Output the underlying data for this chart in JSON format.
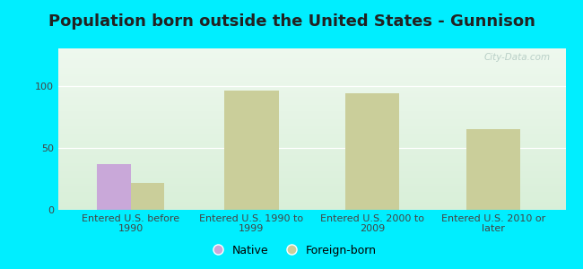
{
  "title": "Population born outside the United States - Gunnison",
  "background_outer": "#00eeff",
  "background_inner_top": "#eef8ee",
  "background_inner_bottom": "#d8efd8",
  "categories": [
    "Entered U.S. before\n1990",
    "Entered U.S. 1990 to\n1999",
    "Entered U.S. 2000 to\n2009",
    "Entered U.S. 2010 or\nlater"
  ],
  "native_values": [
    37,
    0,
    0,
    0
  ],
  "foreign_values": [
    22,
    96,
    94,
    65
  ],
  "native_color": "#c9a8d9",
  "foreign_color": "#cace9a",
  "ylim": [
    0,
    130
  ],
  "yticks": [
    0,
    50,
    100
  ],
  "bar_width": 0.28,
  "legend_native": "Native",
  "legend_foreign": "Foreign-born",
  "title_fontsize": 13,
  "tick_fontsize": 8,
  "legend_fontsize": 9,
  "watermark": "City-Data.com"
}
